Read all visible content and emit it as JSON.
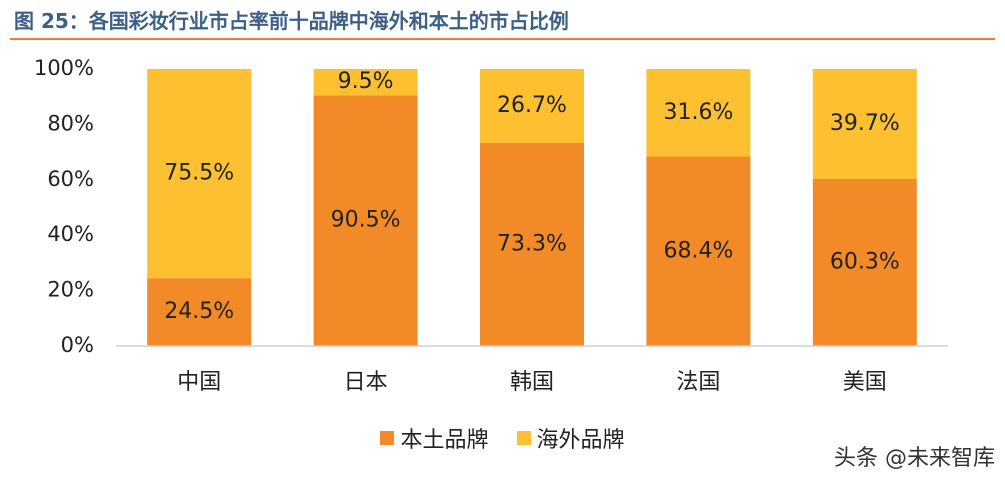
{
  "header": {
    "title": "图 25：各国彩妆行业市占率前十品牌中海外和本土的市占比例"
  },
  "colors": {
    "domestic": "#f28a28",
    "overseas": "#fcc030",
    "title_rule": "#ed7d31"
  },
  "watermark": "头条 @未来智库",
  "chart_data": {
    "type": "bar",
    "stacked": true,
    "title": "",
    "xlabel": "",
    "ylabel": "",
    "categories": [
      "中国",
      "日本",
      "韩国",
      "法国",
      "美国"
    ],
    "series": [
      {
        "name": "本土品牌",
        "values": [
          24.5,
          90.5,
          73.3,
          68.4,
          60.3
        ],
        "labels": [
          "24.5%",
          "90.5%",
          "73.3%",
          "68.4%",
          "60.3%"
        ]
      },
      {
        "name": "海外品牌",
        "values": [
          75.5,
          9.5,
          26.7,
          31.6,
          39.7
        ],
        "labels": [
          "75.5%",
          "9.5%",
          "26.7%",
          "31.6%",
          "39.7%"
        ]
      }
    ],
    "ylim": [
      0,
      100
    ],
    "yticks": [
      "0%",
      "20%",
      "40%",
      "60%",
      "80%",
      "100%"
    ],
    "grid": false,
    "legend_position": "bottom"
  }
}
